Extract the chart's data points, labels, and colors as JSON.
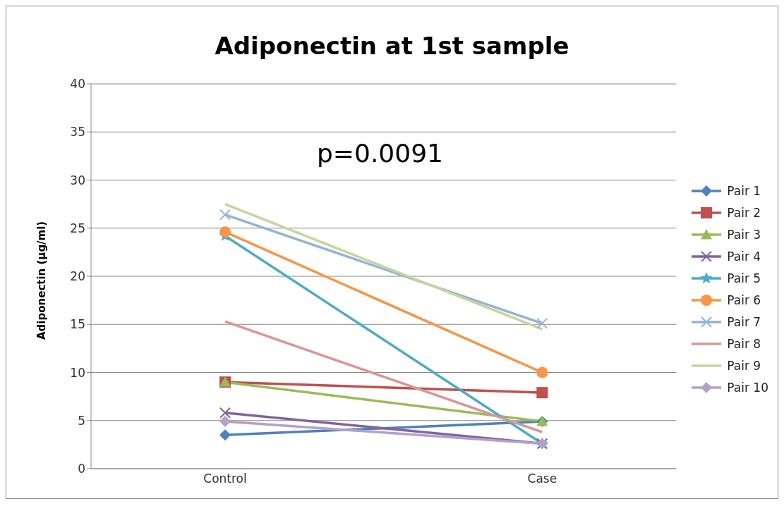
{
  "chart_data": {
    "type": "line",
    "title": "Adiponectin at 1st sample",
    "ylabel": "Adiponectin (µg/ml)",
    "categories": [
      "Control",
      "Case"
    ],
    "series": [
      {
        "name": "Pair 1",
        "color": "#4f81bd",
        "marker": "diamond",
        "values": [
          3.5,
          4.9
        ]
      },
      {
        "name": "Pair 2",
        "color": "#c0504d",
        "marker": "square",
        "values": [
          9.0,
          7.9
        ]
      },
      {
        "name": "Pair 3",
        "color": "#9bbb59",
        "marker": "triangle",
        "values": [
          9.0,
          4.9
        ]
      },
      {
        "name": "Pair 4",
        "color": "#8064a2",
        "marker": "cross",
        "values": [
          5.8,
          2.6
        ]
      },
      {
        "name": "Pair 5",
        "color": "#4bacc6",
        "marker": "star",
        "values": [
          24.2,
          2.6
        ]
      },
      {
        "name": "Pair 6",
        "color": "#f79646",
        "marker": "circle",
        "values": [
          24.6,
          10.0
        ]
      },
      {
        "name": "Pair 7",
        "color": "#95b3d7",
        "marker": "cross",
        "values": [
          26.4,
          15.1
        ]
      },
      {
        "name": "Pair 8",
        "color": "#da9694",
        "marker": "none",
        "values": [
          15.3,
          3.8
        ]
      },
      {
        "name": "Pair 9",
        "color": "#c3d69b",
        "marker": "none",
        "values": [
          27.5,
          14.5
        ]
      },
      {
        "name": "Pair 10",
        "color": "#b3a2c7",
        "marker": "diamond",
        "values": [
          4.9,
          2.6
        ]
      }
    ],
    "ylim": [
      0,
      40
    ],
    "yticks": [
      0,
      5,
      10,
      15,
      20,
      25,
      30,
      35,
      40
    ],
    "grid": "y",
    "legend": "right",
    "line_style": "solid",
    "annotations": [
      "p=0.0091"
    ]
  }
}
